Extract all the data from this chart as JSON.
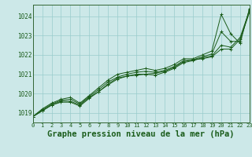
{
  "background_color": "#cce8e8",
  "plot_bg_color": "#cce8e8",
  "grid_color": "#99cccc",
  "line_color": "#1a5c1a",
  "marker_color": "#1a5c1a",
  "title": "Graphe pression niveau de la mer (hPa)",
  "title_fontsize": 7.5,
  "xlim": [
    0,
    23
  ],
  "ylim": [
    1018.5,
    1024.6
  ],
  "yticks": [
    1019,
    1020,
    1021,
    1022,
    1023,
    1024
  ],
  "xticks": [
    0,
    1,
    2,
    3,
    4,
    5,
    6,
    7,
    8,
    9,
    10,
    11,
    12,
    13,
    14,
    15,
    16,
    17,
    18,
    19,
    20,
    21,
    22,
    23
  ],
  "series": [
    [
      1018.8,
      1019.2,
      1019.5,
      1019.7,
      1019.8,
      1019.5,
      1019.9,
      1020.3,
      1020.7,
      1021.0,
      1021.1,
      1021.2,
      1021.3,
      1021.2,
      1021.3,
      1021.5,
      1021.8,
      1021.8,
      1022.0,
      1022.2,
      1024.1,
      1023.1,
      1022.6,
      1024.4
    ],
    [
      1018.8,
      1019.1,
      1019.4,
      1019.6,
      1019.6,
      1019.4,
      1019.8,
      1020.1,
      1020.5,
      1020.8,
      1020.9,
      1021.0,
      1021.0,
      1021.05,
      1021.15,
      1021.35,
      1021.65,
      1021.75,
      1021.8,
      1021.9,
      1022.3,
      1022.3,
      1022.8,
      1024.2
    ],
    [
      1018.8,
      1019.15,
      1019.45,
      1019.65,
      1019.7,
      1019.45,
      1019.85,
      1020.2,
      1020.6,
      1020.85,
      1021.0,
      1021.1,
      1021.15,
      1021.1,
      1021.2,
      1021.4,
      1021.7,
      1021.75,
      1021.9,
      1022.05,
      1023.2,
      1022.7,
      1022.7,
      1024.35
    ],
    [
      1018.8,
      1019.1,
      1019.4,
      1019.55,
      1019.55,
      1019.35,
      1019.75,
      1020.1,
      1020.45,
      1020.75,
      1020.9,
      1020.95,
      1021.0,
      1020.95,
      1021.1,
      1021.3,
      1021.6,
      1021.7,
      1021.85,
      1021.95,
      1022.5,
      1022.4,
      1022.9,
      1024.3
    ]
  ]
}
